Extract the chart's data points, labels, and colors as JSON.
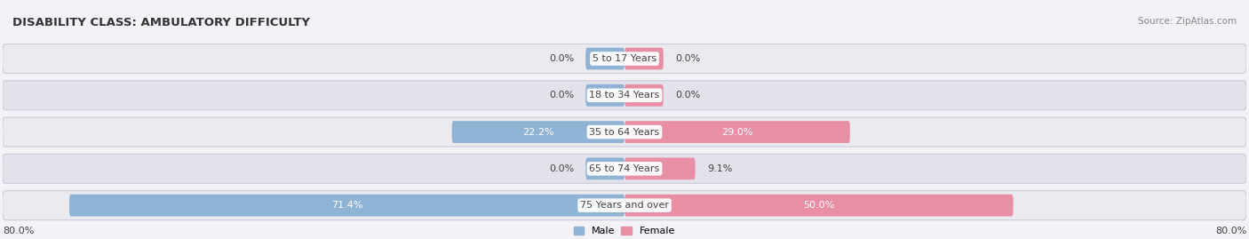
{
  "title": "DISABILITY CLASS: AMBULATORY DIFFICULTY",
  "source": "Source: ZipAtlas.com",
  "categories": [
    "5 to 17 Years",
    "18 to 34 Years",
    "35 to 64 Years",
    "65 to 74 Years",
    "75 Years and over"
  ],
  "male_values": [
    0.0,
    0.0,
    22.2,
    0.0,
    71.4
  ],
  "female_values": [
    0.0,
    0.0,
    29.0,
    9.1,
    50.0
  ],
  "male_color": "#8fb3d5",
  "female_color": "#e88fa5",
  "male_label": "Male",
  "female_label": "Female",
  "axis_left_label": "80.0%",
  "axis_right_label": "80.0%",
  "xlim": 80.0,
  "bg_color": "#f2f2f7",
  "title_color": "#333333",
  "source_color": "#888888",
  "label_color": "#444444",
  "title_fontsize": 9.5,
  "label_fontsize": 8.0,
  "tick_fontsize": 8.0,
  "stub_size": 5.0,
  "row_colors": [
    "#eaeaef",
    "#e2e2ea"
  ]
}
